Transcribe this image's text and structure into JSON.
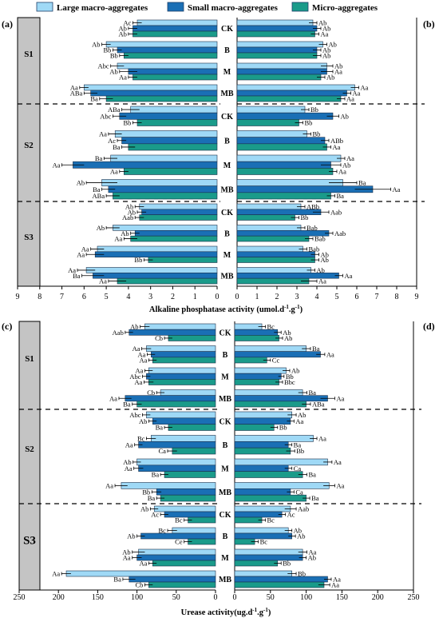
{
  "legend": [
    {
      "name": "Large macro-aggregates",
      "color": "#9fd9f6"
    },
    {
      "name": "Small macro-aggregates",
      "color": "#1a6fb5"
    },
    {
      "name": "Micro-aggregates",
      "color": "#1a9b8a"
    }
  ],
  "chart_data": [
    {
      "type": "bar",
      "orientation": "horizontal-mirrored",
      "panels": [
        "(a)",
        "(b)"
      ],
      "xlabel": "Alkaline phosphatase activity (umol.d",
      "xlabel_sup1": "-1",
      "xlabel_mid": ".g",
      "xlabel_sup2": "-1",
      "xlabel_end": ")",
      "xlim": [
        0,
        9
      ],
      "ticks": [
        "0",
        "1",
        "2",
        "3",
        "4",
        "5",
        "6",
        "7",
        "8",
        "9"
      ],
      "sections": [
        "S1",
        "S2",
        "S3"
      ],
      "treatments": [
        "CK",
        "B",
        "M",
        "MB"
      ],
      "left": {
        "values": [
          [
            [
              3.6,
              3.8,
              3.8
            ],
            [
              5.0,
              4.5,
              4.2
            ],
            [
              4.5,
              4.0,
              3.8
            ],
            [
              6.0,
              5.7,
              5.0
            ]
          ],
          [
            [
              3.9,
              4.4,
              3.6
            ],
            [
              4.6,
              4.3,
              4.0
            ],
            [
              4.8,
              6.5,
              4.2
            ],
            [
              5.2,
              4.9,
              4.7
            ]
          ],
          [
            [
              3.5,
              3.4,
              3.5
            ],
            [
              4.7,
              3.7,
              3.9
            ],
            [
              5.4,
              5.5,
              3.1
            ],
            [
              5.9,
              5.6,
              4.5
            ]
          ]
        ],
        "errors": [
          [
            [
              0.2,
              0.2,
              0.2
            ],
            [
              0.2,
              0.2,
              0.2
            ],
            [
              0.3,
              0.4,
              0.2
            ],
            [
              0.2,
              0.3,
              0.3
            ]
          ],
          [
            [
              0.4,
              0.3,
              0.2
            ],
            [
              0.3,
              0.2,
              0.3
            ],
            [
              0.3,
              0.5,
              0.2
            ],
            [
              0.7,
              0.3,
              0.3
            ]
          ],
          [
            [
              0.2,
              0.2,
              0.2
            ],
            [
              0.3,
              0.2,
              0.3
            ],
            [
              0.3,
              0.4,
              0.2
            ],
            [
              0.4,
              0.5,
              0.4
            ]
          ]
        ],
        "labels": [
          [
            [
              "Ac",
              "Ab",
              "Ab"
            ],
            [
              "Ab",
              "Bb",
              "Bb"
            ],
            [
              "Abc",
              "Ab",
              "Aa"
            ],
            [
              "Aa",
              "ABa",
              "Ba"
            ]
          ],
          [
            [
              "ABa",
              "Abc",
              "Bb"
            ],
            [
              "Aa",
              "Ac",
              "Ba"
            ],
            [
              "Ba",
              "Aa",
              "Aa"
            ],
            [
              "Ab",
              "Ba",
              "ABa"
            ]
          ],
          [
            [
              "Ab",
              "Ab",
              "Aab"
            ],
            [
              "Ab",
              "Ab",
              "Aa"
            ],
            [
              "Aa",
              "Aa",
              "Bb"
            ],
            [
              "Aa",
              "Ba",
              "Aa"
            ]
          ]
        ]
      },
      "right": {
        "values": [
          [
            [
              3.8,
              4.0,
              3.9
            ],
            [
              4.3,
              4.0,
              4.0
            ],
            [
              4.5,
              4.5,
              4.2
            ],
            [
              5.9,
              5.5,
              5.2
            ]
          ],
          [
            [
              3.4,
              4.8,
              3.1
            ],
            [
              3.5,
              4.4,
              4.5
            ],
            [
              5.2,
              4.7,
              4.8
            ],
            [
              5.3,
              6.8,
              4.7
            ]
          ],
          [
            [
              3.2,
              4.2,
              2.9
            ],
            [
              3.2,
              4.6,
              3.6
            ],
            [
              3.3,
              3.9,
              3.9
            ],
            [
              3.7,
              5.1,
              3.6
            ]
          ]
        ],
        "errors": [
          [
            [
              0.2,
              0.2,
              0.2
            ],
            [
              0.2,
              0.2,
              0.2
            ],
            [
              0.3,
              0.3,
              0.2
            ],
            [
              0.2,
              0.2,
              0.2
            ]
          ],
          [
            [
              0.2,
              0.3,
              0.2
            ],
            [
              0.2,
              0.2,
              0.2
            ],
            [
              0.2,
              0.5,
              0.2
            ],
            [
              0.7,
              0.9,
              0.2
            ]
          ],
          [
            [
              0.2,
              0.4,
              0.2
            ],
            [
              0.2,
              0.2,
              0.2
            ],
            [
              0.2,
              0.2,
              0.2
            ],
            [
              0.2,
              0.2,
              0.4
            ]
          ]
        ],
        "labels": [
          [
            [
              "Ab",
              "Ab",
              "Aa"
            ],
            [
              "Ab",
              "Ab",
              "Ab"
            ],
            [
              "Ab",
              "Aa",
              "Ab"
            ],
            [
              "Aa",
              "Aa",
              "Aa"
            ]
          ],
          [
            [
              "Bb",
              "Ab",
              "Bb"
            ],
            [
              "Bb",
              "ABb",
              "Aa"
            ],
            [
              "Aa",
              "Ab",
              "Aa"
            ],
            [
              "Ba",
              "Aa",
              "Ba"
            ]
          ],
          [
            [
              "ABb",
              "Aab",
              "Bb"
            ],
            [
              "Bab",
              "Aab",
              "Bab"
            ],
            [
              "Bab",
              "Ab",
              "Ab"
            ],
            [
              "Ab",
              "Aa",
              "Aa"
            ]
          ]
        ]
      }
    },
    {
      "type": "bar",
      "orientation": "horizontal-mirrored",
      "panels": [
        "(c)",
        "(d)"
      ],
      "xlabel": "Urease activity(ug.d",
      "xlabel_sup1": "-1",
      "xlabel_mid": ".g",
      "xlabel_sup2": "-1",
      "xlabel_end": ")",
      "xlim": [
        0,
        250
      ],
      "ticks": [
        "0",
        "50",
        "100",
        "150",
        "200",
        "250"
      ],
      "sections": [
        "S1",
        "S2",
        "S3"
      ],
      "treatments": [
        "CK",
        "B",
        "M",
        "MB"
      ],
      "left": {
        "values": [
          [
            [
              90,
              110,
              60
            ],
            [
              88,
              82,
              80
            ],
            [
              85,
              88,
              85
            ],
            [
              70,
              115,
              100
            ]
          ],
          [
            [
              88,
              80,
              60
            ],
            [
              82,
              98,
              55
            ],
            [
              100,
              98,
              65
            ],
            [
              120,
              75,
              70
            ]
          ],
          [
            [
              78,
              65,
              35
            ],
            [
              55,
              95,
              35
            ],
            [
              98,
              100,
              80
            ],
            [
              190,
              110,
              85
            ]
          ]
        ],
        "errors": [
          [
            [
              6,
              5,
              5
            ],
            [
              6,
              5,
              5
            ],
            [
              5,
              5,
              6
            ],
            [
              5,
              8,
              6
            ]
          ],
          [
            [
              5,
              5,
              5
            ],
            [
              6,
              5,
              6
            ],
            [
              5,
              6,
              5
            ],
            [
              8,
              6,
              5
            ]
          ],
          [
            [
              5,
              5,
              5
            ],
            [
              6,
              5,
              5
            ],
            [
              8,
              6,
              5
            ],
            [
              6,
              8,
              5
            ]
          ]
        ],
        "labels": [
          [
            [
              "Ab",
              "Aab",
              "Cb"
            ],
            [
              "Aa",
              "Aa",
              "Aa"
            ],
            [
              "Aa",
              "Abc",
              "Aa"
            ],
            [
              "Cb",
              "Aa",
              "Ba"
            ]
          ],
          [
            [
              "Abc",
              "Ab",
              "Ba"
            ],
            [
              "Bc",
              "Aa",
              "Ca"
            ],
            [
              "Ab",
              "Aa",
              "Ba"
            ],
            [
              "Aa",
              "Bb",
              "Ba"
            ]
          ],
          [
            [
              "Ab",
              "Ac",
              "Bc"
            ],
            [
              "Bc",
              "Ab",
              "Ce"
            ],
            [
              "Ab",
              "Aa",
              "Aa"
            ],
            [
              "Aa",
              "Ba",
              "Cb"
            ]
          ]
        ]
      },
      "right": {
        "values": [
          [
            [
              38,
              60,
              62
            ],
            [
              100,
              120,
              45
            ],
            [
              72,
              65,
              62
            ],
            [
              95,
              130,
              100
            ]
          ],
          [
            [
              80,
              78,
              55
            ],
            [
              110,
              75,
              78
            ],
            [
              130,
              75,
              95
            ],
            [
              132,
              78,
              100
            ]
          ],
          [
            [
              78,
              66,
              38
            ],
            [
              75,
              80,
              28
            ],
            [
              95,
              95,
              60
            ],
            [
              80,
              130,
              125
            ]
          ]
        ],
        "errors": [
          [
            [
              5,
              5,
              5
            ],
            [
              6,
              6,
              5
            ],
            [
              5,
              4,
              5
            ],
            [
              6,
              10,
              6
            ]
          ],
          [
            [
              6,
              5,
              5
            ],
            [
              5,
              5,
              6
            ],
            [
              6,
              5,
              6
            ],
            [
              8,
              5,
              5
            ]
          ],
          [
            [
              8,
              5,
              5
            ],
            [
              5,
              5,
              5
            ],
            [
              6,
              5,
              5
            ],
            [
              6,
              5,
              8
            ]
          ]
        ],
        "labels": [
          [
            [
              "Bc",
              "Ab",
              "Ab"
            ],
            [
              "Ba",
              "Aa",
              "Cc"
            ],
            [
              "Ab",
              "Bb",
              "Bbc"
            ],
            [
              "Ba",
              "Aa",
              "ABa"
            ]
          ],
          [
            [
              "Ab",
              "Aa",
              "Bb"
            ],
            [
              "Aa",
              "Ba",
              "Bb"
            ],
            [
              "Aa",
              "Ca",
              "Ba"
            ],
            [
              "Aa",
              "Ca",
              "Ba"
            ]
          ],
          [
            [
              "Aab",
              "Ac",
              "Bc"
            ],
            [
              "Ab",
              "Ab",
              "Bc"
            ],
            [
              "Aa",
              "Ab",
              "Bb"
            ],
            [
              "Bb",
              "Aa",
              "Aa"
            ]
          ]
        ]
      }
    }
  ]
}
